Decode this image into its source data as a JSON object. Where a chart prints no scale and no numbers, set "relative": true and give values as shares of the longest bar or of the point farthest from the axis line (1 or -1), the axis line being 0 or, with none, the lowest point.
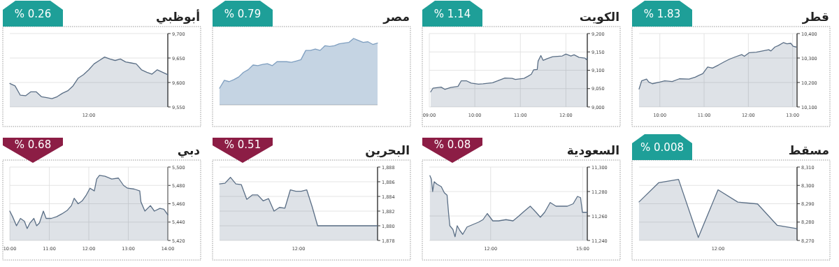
{
  "chart_data": [
    {
      "type": "area",
      "title": "قطر",
      "annotations": [
        "% 1.83"
      ],
      "x": [
        9.53,
        9.59,
        9.7,
        9.75,
        9.83,
        10,
        10.11,
        10.28,
        10.44,
        10.66,
        10.8,
        10.88,
        10.97,
        11.08,
        11.19,
        11.33,
        11.46,
        11.57,
        11.71,
        11.85,
        11.91,
        12.02,
        12.18,
        12.32,
        12.46,
        12.51,
        12.6,
        12.68,
        12.79,
        12.87,
        12.96,
        13.01,
        13.08
      ],
      "series": [
        {
          "color": "#5b6f86",
          "values": [
            10173,
            10207,
            10214,
            10202,
            10195,
            10202,
            10207,
            10204,
            10215,
            10214,
            10222,
            10229,
            10236,
            10263,
            10259,
            10272,
            10285,
            10295,
            10305,
            10314,
            10307,
            10322,
            10324,
            10329,
            10334,
            10329,
            10345,
            10351,
            10363,
            10358,
            10360,
            10348,
            10345
          ]
        }
      ],
      "xlim": [
        9.53,
        13.1
      ],
      "xticks": [
        {
          "value": 10,
          "label": "10:00"
        },
        {
          "value": 11,
          "label": "11:00"
        },
        {
          "value": 12,
          "label": "12:00"
        },
        {
          "value": 13,
          "label": "13:00"
        }
      ],
      "ylim": [
        10100,
        10400
      ],
      "yticks": [
        {
          "value": 10100,
          "label": "10,100"
        },
        {
          "value": 10200,
          "label": "10,200"
        },
        {
          "value": 10300,
          "label": "10,300"
        },
        {
          "value": 10400,
          "label": "10,400"
        }
      ],
      "grid": true
    },
    {
      "type": "area",
      "title": "الكويت",
      "annotations": [
        "% 1.14"
      ],
      "x": [
        9.03,
        9.08,
        9.26,
        9.34,
        9.47,
        9.63,
        9.7,
        9.82,
        9.92,
        10.08,
        10.18,
        10.39,
        10.5,
        10.66,
        10.82,
        10.89,
        11.08,
        11.16,
        11.24,
        11.29,
        11.37,
        11.39,
        11.45,
        11.5,
        11.58,
        11.71,
        11.92,
        12.0,
        12.11,
        12.18,
        12.29,
        12.42,
        12.45,
        12.47
      ],
      "series": [
        {
          "color": "#5b6f86",
          "values": [
            9041,
            9051,
            9054,
            9048,
            9053,
            9056,
            9071,
            9071,
            9065,
            9062,
            9063,
            9066,
            9071,
            9079,
            9078,
            9075,
            9078,
            9083,
            9089,
            9101,
            9102,
            9125,
            9140,
            9127,
            9131,
            9137,
            9139,
            9144,
            9139,
            9142,
            9135,
            9133,
            9129,
            9135
          ]
        }
      ],
      "xlim": [
        9,
        12.47
      ],
      "xticks": [
        {
          "value": 9,
          "label": "09:00"
        },
        {
          "value": 10,
          "label": "10:00"
        },
        {
          "value": 11,
          "label": "11:00"
        },
        {
          "value": 12,
          "label": "12:00"
        }
      ],
      "ylim": [
        9000,
        9200
      ],
      "yticks": [
        {
          "value": 9000,
          "label": "9,000"
        },
        {
          "value": 9050,
          "label": "9,050"
        },
        {
          "value": 9100,
          "label": "9,100"
        },
        {
          "value": 9150,
          "label": "9,150"
        },
        {
          "value": 9200,
          "label": "9,200"
        }
      ],
      "grid": true
    },
    {
      "type": "area",
      "title": "مصر",
      "annotations": [
        "% 0.79"
      ],
      "relative": true,
      "categories": [
        null,
        null,
        null,
        null,
        null,
        null,
        null,
        null,
        null,
        null,
        null,
        null,
        null,
        null,
        null,
        null,
        null,
        null,
        null,
        null,
        null,
        null,
        null,
        null,
        null,
        null,
        null,
        null,
        null,
        null,
        null,
        null,
        null,
        null
      ],
      "series": [
        {
          "color": "#7f9fc0",
          "values": [
            0.25,
            0.37,
            0.35,
            0.38,
            0.42,
            0.49,
            0.53,
            0.6,
            0.59,
            0.61,
            0.62,
            0.59,
            0.65,
            0.65,
            0.65,
            0.64,
            0.66,
            0.68,
            0.82,
            0.82,
            0.84,
            0.82,
            0.89,
            0.88,
            0.89,
            0.92,
            0.93,
            0.94,
            1.0,
            0.97,
            0.94,
            0.95,
            0.91,
            0.93
          ]
        }
      ]
    },
    {
      "type": "area",
      "title": "أبوظبي",
      "annotations": [
        "% 0.26",
        "12:00"
      ],
      "categories": [
        null,
        null,
        null,
        null,
        null,
        null,
        null,
        null,
        null,
        null,
        null,
        null,
        null,
        null,
        null,
        null,
        null,
        null,
        null,
        null,
        null,
        null,
        null,
        null,
        null,
        null,
        null,
        null,
        null,
        null,
        null
      ],
      "series": [
        {
          "color": "#5b6f86",
          "values": [
            9598,
            9593,
            9574,
            9573,
            9581,
            9581,
            9571,
            9569,
            9567,
            9571,
            9578,
            9583,
            9593,
            9609,
            9616,
            9626,
            9638,
            9645,
            9652,
            9648,
            9645,
            9648,
            9642,
            9640,
            9638,
            9626,
            9621,
            9617,
            9626,
            9621,
            9616
          ]
        }
      ],
      "ylim": [
        9550,
        9700
      ],
      "yticks": [
        {
          "value": 9550,
          "label": "9,550"
        },
        {
          "value": 9600,
          "label": "9,600"
        },
        {
          "value": 9650,
          "label": "9,650"
        },
        {
          "value": 9700,
          "label": "9,700"
        }
      ],
      "grid": true
    },
    {
      "type": "area",
      "title": "مسقط",
      "annotations": [
        "% 0.008",
        "12:00"
      ],
      "categories": [
        null,
        null,
        null,
        null,
        null,
        null,
        null,
        null,
        null
      ],
      "series": [
        {
          "color": "#5b6f86",
          "values": [
            8291,
            8301.5,
            8303.3,
            8271.6,
            8297.6,
            8290.9,
            8289.9,
            8278.2,
            8276.4
          ]
        }
      ],
      "ylim": [
        8270,
        8310
      ],
      "yticks": [
        {
          "value": 8270,
          "label": "8,270"
        },
        {
          "value": 8280,
          "label": "8,280"
        },
        {
          "value": 8290,
          "label": "8,290"
        },
        {
          "value": 8300,
          "label": "8,300"
        },
        {
          "value": 8310,
          "label": "8,310"
        }
      ],
      "grid": true
    },
    {
      "type": "area",
      "title": "السعودية",
      "annotations": [
        "% 0.08"
      ],
      "x": [
        10.02,
        10.07,
        10.11,
        10.16,
        10.25,
        10.39,
        10.49,
        10.58,
        10.63,
        10.67,
        10.77,
        10.84,
        10.91,
        11.0,
        11.09,
        11.23,
        11.42,
        11.61,
        11.75,
        11.89,
        11.98,
        12.07,
        12.26,
        12.5,
        12.73,
        12.92,
        13.1,
        13.29,
        13.48,
        13.62,
        13.76,
        13.94,
        14.13,
        14.32,
        14.5,
        14.69,
        14.83,
        14.93,
        14.99,
        15.14
      ],
      "series": [
        {
          "color": "#5b6f86",
          "values": [
            11293,
            11290,
            11280,
            11288,
            11286,
            11284,
            11279,
            11277,
            11262,
            11252,
            11249,
            11243,
            11252,
            11248,
            11245,
            11251,
            11253,
            11255,
            11257,
            11262,
            11259,
            11256,
            11256,
            11257,
            11256,
            11260,
            11264,
            11268,
            11263,
            11259,
            11263,
            11271,
            11268,
            11268,
            11268,
            11270,
            11276,
            11275,
            11263,
            11263
          ]
        }
      ],
      "xlim": [
        10,
        15.15
      ],
      "xticks": [
        {
          "value": 12,
          "label": "12:00"
        },
        {
          "value": 15,
          "label": "15:00"
        }
      ],
      "ylim": [
        11240,
        11300
      ],
      "yticks": [
        {
          "value": 11240,
          "label": "11,240"
        },
        {
          "value": 11260,
          "label": "11,260"
        },
        {
          "value": 11280,
          "label": "11,280"
        },
        {
          "value": 11300,
          "label": "11,300"
        }
      ],
      "grid": true
    },
    {
      "type": "area",
      "title": "البحرين",
      "annotations": [
        "% 0.51",
        "12:00"
      ],
      "categories": [
        null,
        null,
        null,
        null,
        null,
        null,
        null,
        null,
        null,
        null,
        null,
        null,
        null,
        null,
        null,
        null,
        null,
        null,
        null,
        null,
        null,
        null,
        null,
        null,
        null,
        null,
        null,
        null,
        null,
        null
      ],
      "series": [
        {
          "color": "#5b6f86",
          "values": [
            1885.7,
            1885.8,
            1886.6,
            1885.7,
            1885.6,
            1883.6,
            1884.2,
            1884.2,
            1883.4,
            1883.7,
            1882.0,
            1882.5,
            1882.4,
            1884.9,
            1884.7,
            1884.7,
            1884.9,
            1882.6,
            1880.0,
            1880.0,
            1880.0,
            1880.0,
            1880.0,
            1880.0,
            1880.0,
            1880.0,
            1880.0,
            1880.0,
            1880.0,
            1880.0
          ]
        }
      ],
      "ylim": [
        1878,
        1888
      ],
      "yticks": [
        {
          "value": 1878,
          "label": "1,878"
        },
        {
          "value": 1880,
          "label": "1,880"
        },
        {
          "value": 1882,
          "label": "1,882"
        },
        {
          "value": 1884,
          "label": "1,884"
        },
        {
          "value": 1886,
          "label": "1,886"
        },
        {
          "value": 1888,
          "label": "1,888"
        }
      ],
      "grid": true
    },
    {
      "type": "area",
      "title": "دبي",
      "annotations": [
        "% 0.68"
      ],
      "x": [
        10,
        10.07,
        10.17,
        10.27,
        10.37,
        10.44,
        10.51,
        10.61,
        10.68,
        10.75,
        10.85,
        10.92,
        11.05,
        11.19,
        11.32,
        11.46,
        11.56,
        11.63,
        11.73,
        11.83,
        11.93,
        12.03,
        12.14,
        12.2,
        12.27,
        12.41,
        12.58,
        12.75,
        12.88,
        12.98,
        13.15,
        13.29,
        13.32,
        13.42,
        13.56,
        13.66,
        13.8,
        13.9,
        14
      ],
      "series": [
        {
          "color": "#5b6f86",
          "values": [
            5452,
            5446,
            5436,
            5444,
            5441,
            5433,
            5439,
            5444,
            5436,
            5439,
            5452,
            5444,
            5444,
            5446,
            5449,
            5453,
            5458,
            5466,
            5460,
            5463,
            5469,
            5477,
            5474,
            5487,
            5491,
            5490,
            5487,
            5488,
            5480,
            5477,
            5476,
            5474,
            5462,
            5452,
            5458,
            5452,
            5455,
            5454,
            5448
          ]
        }
      ],
      "xlim": [
        10,
        14
      ],
      "xticks": [
        {
          "value": 10,
          "label": "10:00"
        },
        {
          "value": 11,
          "label": "11:00"
        },
        {
          "value": 12,
          "label": "12:00"
        },
        {
          "value": 13,
          "label": "13:00"
        },
        {
          "value": 14,
          "label": "14:00"
        }
      ],
      "ylim": [
        5420,
        5500
      ],
      "yticks": [
        {
          "value": 5420,
          "label": "5,420"
        },
        {
          "value": 5440,
          "label": "5,440"
        },
        {
          "value": 5460,
          "label": "5,460"
        },
        {
          "value": 5480,
          "label": "5,480"
        },
        {
          "value": 5500,
          "label": "5,500"
        }
      ],
      "grid": true
    }
  ]
}
